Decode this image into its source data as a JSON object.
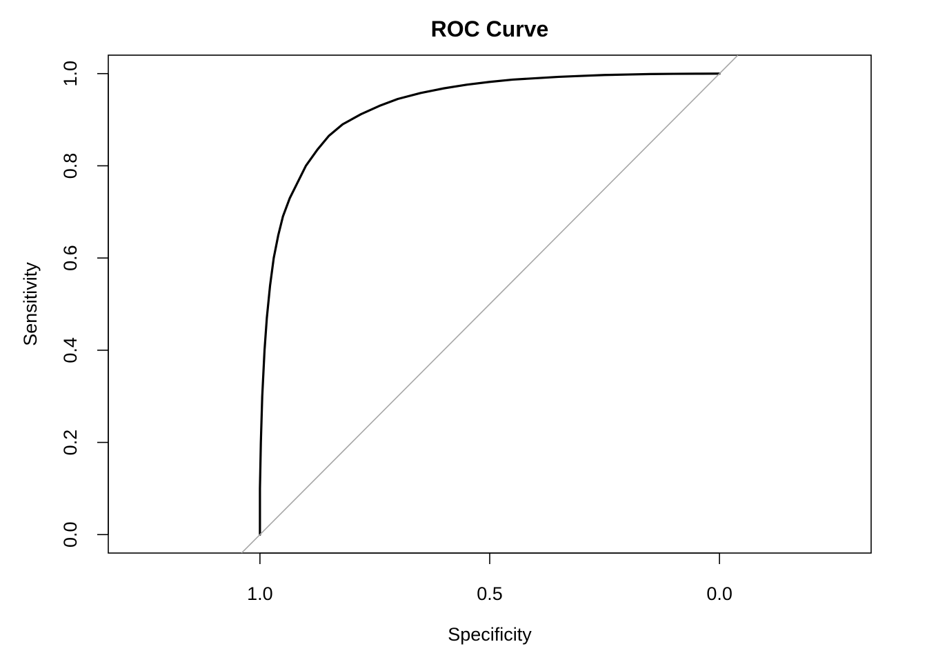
{
  "chart_data": {
    "type": "line",
    "title": "ROC Curve",
    "xlabel": "Specificity",
    "ylabel": "Sensitivity",
    "x_reversed": true,
    "xlim": [
      1.33,
      -0.33
    ],
    "ylim": [
      -0.04,
      1.04
    ],
    "x_ticks": [
      1.0,
      0.5,
      0.0
    ],
    "x_tick_labels": [
      "1.0",
      "0.5",
      "0.0"
    ],
    "y_ticks": [
      0.0,
      0.2,
      0.4,
      0.6,
      0.8,
      1.0
    ],
    "y_tick_labels": [
      "0.0",
      "0.2",
      "0.4",
      "0.6",
      "0.8",
      "1.0"
    ],
    "grid": false,
    "colors": {
      "curve": "#000000",
      "reference": "#a6a6a6"
    },
    "series": [
      {
        "style": "curve",
        "x": [
          1.0,
          1.0,
          0.998,
          0.995,
          0.99,
          0.985,
          0.978,
          0.97,
          0.96,
          0.95,
          0.935,
          0.92,
          0.9,
          0.875,
          0.85,
          0.82,
          0.78,
          0.74,
          0.7,
          0.65,
          0.6,
          0.55,
          0.5,
          0.45,
          0.4,
          0.35,
          0.3,
          0.25,
          0.2,
          0.15,
          0.1,
          0.05,
          0.0
        ],
        "y": [
          0.0,
          0.1,
          0.2,
          0.3,
          0.4,
          0.47,
          0.54,
          0.6,
          0.65,
          0.69,
          0.73,
          0.76,
          0.8,
          0.835,
          0.865,
          0.89,
          0.912,
          0.93,
          0.945,
          0.958,
          0.968,
          0.976,
          0.982,
          0.987,
          0.99,
          0.993,
          0.995,
          0.997,
          0.998,
          0.999,
          0.9995,
          0.9998,
          1.0
        ]
      },
      {
        "style": "reference",
        "x": [
          1.04,
          -0.04
        ],
        "y": [
          -0.04,
          1.04
        ]
      }
    ]
  }
}
